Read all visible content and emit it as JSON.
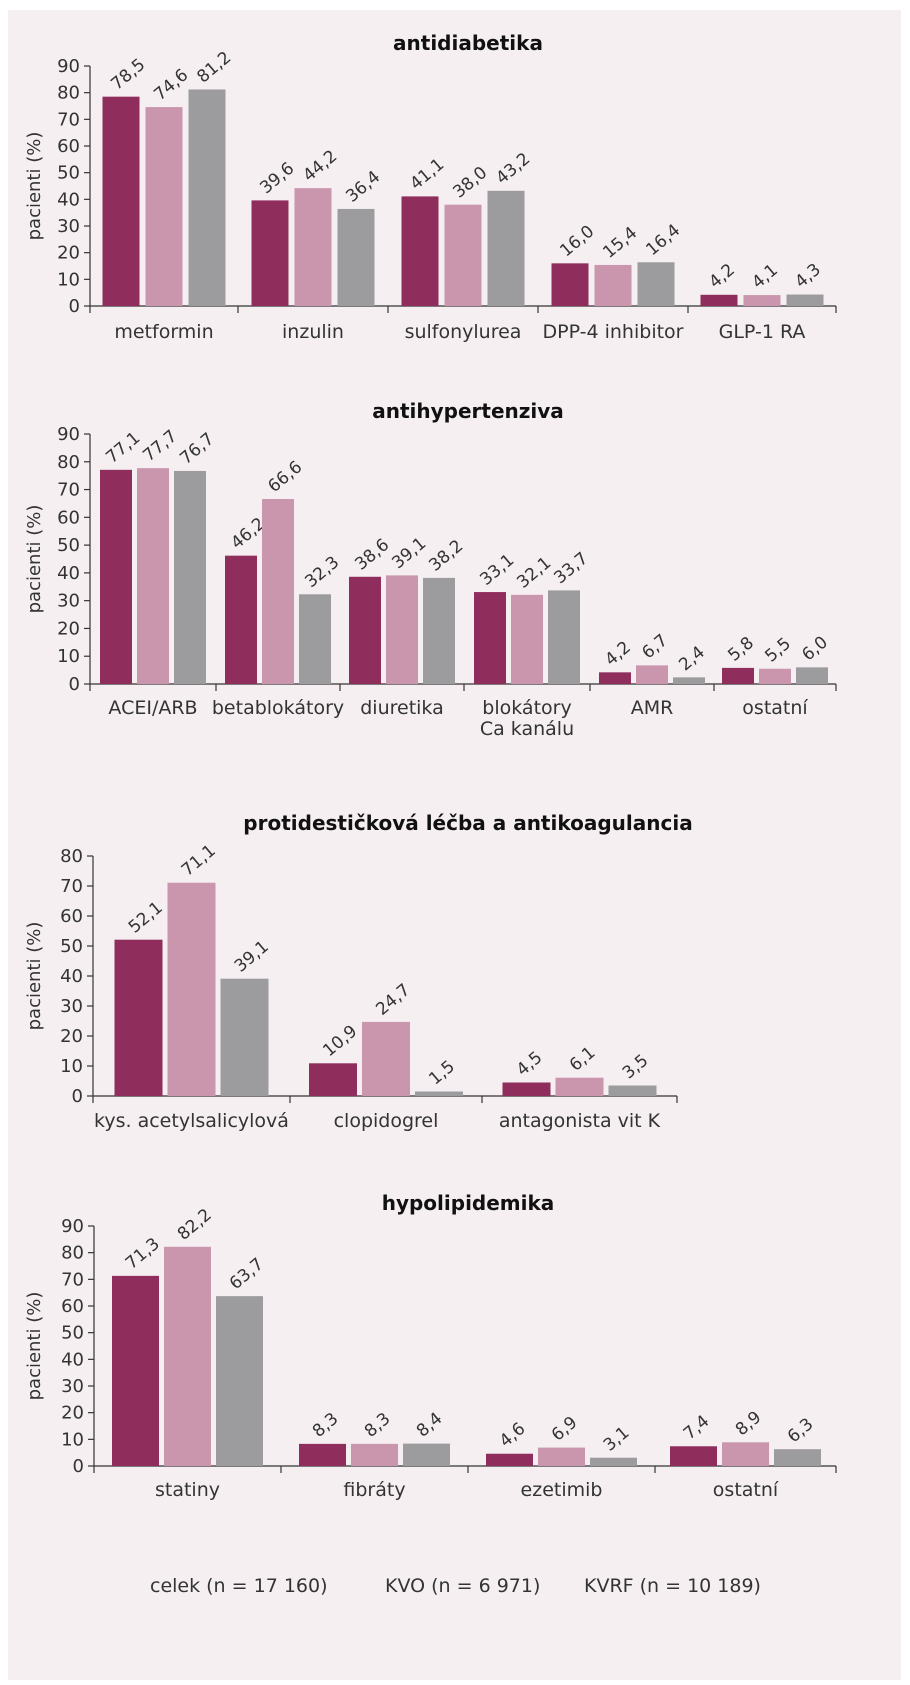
{
  "colors": {
    "celek": "#8f2d5c",
    "KVO": "#c996ae",
    "KVRF": "#9c9c9e"
  },
  "legend": [
    {
      "label": "celek (n = 17 160)",
      "color": "#8f2d5c"
    },
    {
      "label": "KVO (n = 6 971)",
      "color": "#c996ae"
    },
    {
      "label": "KVRF (n = 10 189)",
      "color": "#9c9c9e"
    }
  ],
  "chart_data": [
    {
      "type": "bar",
      "title": "antidiabetika",
      "ylabel": "pacienti (%)",
      "ylim": [
        0,
        90
      ],
      "yticks": [
        0,
        10,
        20,
        30,
        40,
        50,
        60,
        70,
        80,
        90
      ],
      "categories": [
        [
          "metformin"
        ],
        [
          "inzulin"
        ],
        [
          "sulfonylurea"
        ],
        [
          "DPP-4 inhibitor"
        ],
        [
          "GLP-1 RA"
        ]
      ],
      "series": [
        {
          "values": [
            78.5,
            39.6,
            41.1,
            16.0,
            4.2
          ],
          "labels": [
            "78,5",
            "39,6",
            "41,1",
            "16,0",
            "4,2"
          ]
        },
        {
          "values": [
            74.6,
            44.2,
            38.0,
            15.4,
            4.1
          ],
          "labels": [
            "74,6",
            "44,2",
            "38,0",
            "15,4",
            "4,1"
          ]
        },
        {
          "values": [
            81.2,
            36.4,
            43.2,
            16.4,
            4.3
          ],
          "labels": [
            "81,2",
            "36,4",
            "43,2",
            "16,4",
            "4,3"
          ]
        }
      ]
    },
    {
      "type": "bar",
      "title": "antihypertenziva",
      "ylabel": "pacienti (%)",
      "ylim": [
        0,
        90
      ],
      "yticks": [
        0,
        10,
        20,
        30,
        40,
        50,
        60,
        70,
        80,
        90
      ],
      "categories": [
        [
          "ACEI/ARB"
        ],
        [
          "betablokátory"
        ],
        [
          "diuretika"
        ],
        [
          "blokátory",
          "Ca kanálu"
        ],
        [
          "AMR"
        ],
        [
          "ostatní"
        ]
      ],
      "series": [
        {
          "values": [
            77.1,
            46.2,
            38.6,
            33.1,
            4.2,
            5.8
          ],
          "labels": [
            "77,1",
            "46,2",
            "38,6",
            "33,1",
            "4,2",
            "5,8"
          ]
        },
        {
          "values": [
            77.7,
            66.6,
            39.1,
            32.1,
            6.7,
            5.5
          ],
          "labels": [
            "77,7",
            "66,6",
            "39,1",
            "32,1",
            "6,7",
            "5,5"
          ]
        },
        {
          "values": [
            76.7,
            32.3,
            38.2,
            33.7,
            2.4,
            6.0
          ],
          "labels": [
            "76,7",
            "32,3",
            "38,2",
            "33,7",
            "2,4",
            "6,0"
          ]
        }
      ]
    },
    {
      "type": "bar",
      "title": "protidestičková léčba a antikoagulancia",
      "ylabel": "pacienti (%)",
      "ylim": [
        0,
        80
      ],
      "yticks": [
        0,
        10,
        20,
        30,
        40,
        50,
        60,
        70,
        80
      ],
      "categories": [
        [
          "kys. acetylsalicylová"
        ],
        [
          "clopidogrel"
        ],
        [
          "antagonista vit K"
        ]
      ],
      "series": [
        {
          "values": [
            52.1,
            10.9,
            4.5
          ],
          "labels": [
            "52,1",
            "10,9",
            "4,5"
          ]
        },
        {
          "values": [
            71.1,
            24.7,
            6.1
          ],
          "labels": [
            "71,1",
            "24,7",
            "6,1"
          ]
        },
        {
          "values": [
            39.1,
            1.5,
            3.5
          ],
          "labels": [
            "39,1",
            "1,5",
            "3,5"
          ]
        }
      ]
    },
    {
      "type": "bar",
      "title": "hypolipidemika",
      "ylabel": "pacienti (%)",
      "ylim": [
        0,
        90
      ],
      "yticks": [
        0,
        10,
        20,
        30,
        40,
        50,
        60,
        70,
        80,
        90
      ],
      "categories": [
        [
          "statiny"
        ],
        [
          "fibráty"
        ],
        [
          "ezetimib"
        ],
        [
          "ostatní"
        ]
      ],
      "series": [
        {
          "values": [
            71.3,
            8.3,
            4.6,
            7.4
          ],
          "labels": [
            "71,3",
            "8,3",
            "4,6",
            "7,4"
          ]
        },
        {
          "values": [
            82.2,
            8.3,
            6.9,
            8.9
          ],
          "labels": [
            "82,2",
            "8,3",
            "6,9",
            "8,9"
          ]
        },
        {
          "values": [
            63.7,
            8.4,
            3.1,
            6.3
          ],
          "labels": [
            "63,7",
            "8,4",
            "3,1",
            "6,3"
          ]
        }
      ]
    }
  ]
}
